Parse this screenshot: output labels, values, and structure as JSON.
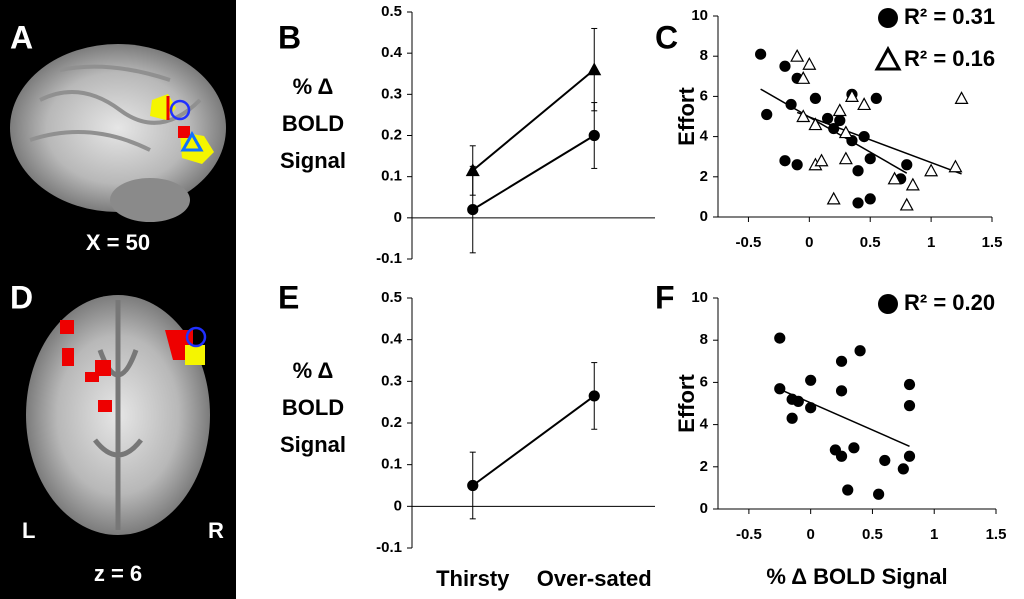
{
  "images": [
    {
      "label": "A",
      "caption": "X = 50"
    },
    {
      "label": "D",
      "caption": "z = 6",
      "left": "L",
      "right": "R"
    }
  ],
  "chart_data": [
    {
      "type": "line",
      "panel": "B",
      "ylabel": [
        "% Δ",
        "BOLD",
        "Signal"
      ],
      "categories": [
        null,
        null
      ],
      "series": [
        {
          "marker": "triangle",
          "filled": true,
          "color": "#000000",
          "values": [
            0.115,
            0.36
          ],
          "errors": [
            0.06,
            0.1
          ]
        },
        {
          "marker": "circle",
          "filled": true,
          "color": "#000000",
          "values": [
            0.02,
            0.2
          ],
          "errors": [
            0.105,
            0.08
          ]
        }
      ],
      "ylim": [
        -0.1,
        0.5
      ],
      "yticks": [
        -0.1,
        0,
        0.1,
        0.2,
        0.3,
        0.4,
        0.5
      ]
    },
    {
      "type": "scatter",
      "panel": "C",
      "ylabel": "Effort",
      "series": [
        {
          "name": "R² = 0.31",
          "marker": "circle",
          "filled": true,
          "color": "#000000",
          "x": [
            -0.4,
            -0.2,
            -0.1,
            0.05,
            0.35,
            0.55,
            -0.35,
            -0.15,
            0.15,
            0.2,
            0.25,
            0.45,
            0.35,
            0.5,
            -0.2,
            -0.1,
            0.4,
            0.75,
            0.8,
            0.4,
            0.5
          ],
          "values": [
            8.1,
            7.5,
            6.9,
            5.9,
            6.1,
            5.9,
            5.1,
            5.6,
            4.9,
            4.4,
            4.8,
            4.0,
            3.8,
            2.9,
            2.8,
            2.6,
            2.3,
            1.9,
            2.6,
            0.7,
            0.9
          ]
        },
        {
          "name": "R² = 0.16",
          "marker": "triangle",
          "filled": false,
          "color": "#000000",
          "x": [
            -0.1,
            0.0,
            -0.05,
            0.35,
            0.45,
            0.25,
            1.25,
            -0.05,
            0.05,
            0.3,
            0.3,
            0.05,
            0.1,
            0.7,
            0.85,
            1.0,
            1.2,
            0.2,
            0.8
          ],
          "values": [
            8.0,
            7.6,
            6.9,
            6.0,
            5.6,
            5.3,
            5.9,
            5.0,
            4.6,
            4.2,
            2.9,
            2.6,
            2.8,
            1.9,
            1.6,
            2.3,
            2.5,
            0.9,
            0.6
          ]
        }
      ],
      "xlim": [
        -0.75,
        1.5
      ],
      "xticks": [
        -0.5,
        0,
        0.5,
        1,
        1.5
      ],
      "ylim": [
        0,
        10
      ],
      "yticks": [
        0,
        2,
        4,
        6,
        8,
        10
      ]
    },
    {
      "type": "line",
      "panel": "E",
      "ylabel": [
        "% Δ",
        "BOLD",
        "Signal"
      ],
      "categories": [
        "Thirsty",
        "Over-sated"
      ],
      "series": [
        {
          "marker": "circle",
          "filled": true,
          "color": "#000000",
          "values": [
            0.05,
            0.265
          ],
          "errors": [
            0.08,
            0.08
          ]
        }
      ],
      "ylim": [
        -0.1,
        0.5
      ],
      "yticks": [
        -0.1,
        0,
        0.1,
        0.2,
        0.3,
        0.4,
        0.5
      ]
    },
    {
      "type": "scatter",
      "panel": "F",
      "ylabel": "Effort",
      "xlabel": "% Δ BOLD Signal",
      "series": [
        {
          "name": "R² = 0.20",
          "marker": "circle",
          "filled": true,
          "color": "#000000",
          "x": [
            -0.25,
            0.25,
            0.4,
            -0.25,
            0.0,
            0.25,
            0.8,
            -0.15,
            -0.1,
            0.0,
            0.8,
            -0.15,
            0.2,
            0.35,
            0.25,
            0.6,
            0.75,
            0.8,
            0.3,
            0.55
          ],
          "values": [
            8.1,
            7.0,
            7.5,
            5.7,
            6.1,
            5.6,
            5.9,
            5.2,
            5.1,
            4.8,
            4.9,
            4.3,
            2.8,
            2.9,
            2.5,
            2.3,
            1.9,
            2.5,
            0.9,
            0.7
          ]
        }
      ],
      "xlim": [
        -0.75,
        1.5
      ],
      "xticks": [
        -0.5,
        0,
        0.5,
        1,
        1.5
      ],
      "ylim": [
        0,
        10
      ],
      "yticks": [
        0,
        2,
        4,
        6,
        8,
        10
      ]
    }
  ]
}
